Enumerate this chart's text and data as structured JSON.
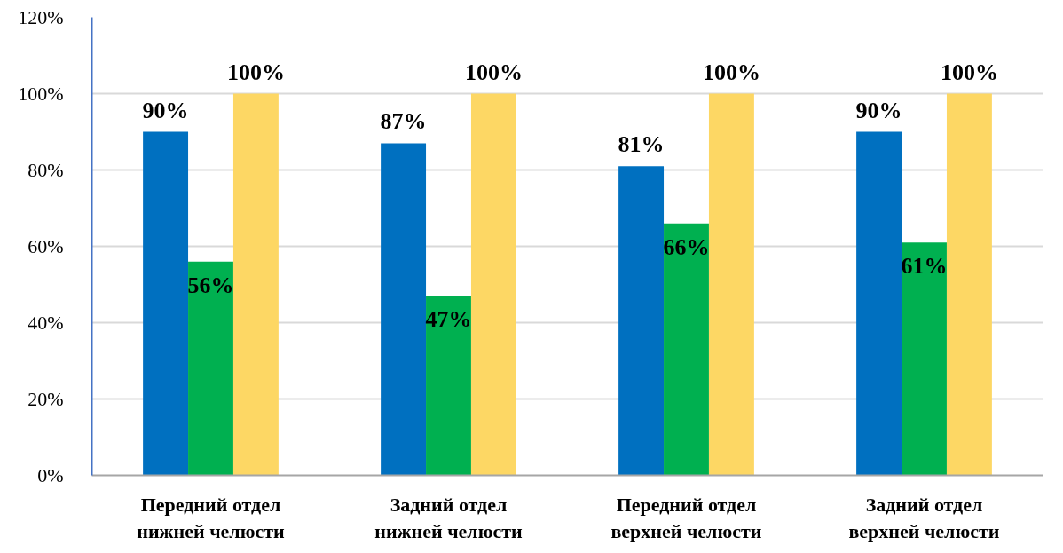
{
  "chart_data": {
    "type": "bar",
    "categories": [
      "Передний отдел\nнижней челюсти",
      "Задний отдел\nнижней челюсти",
      "Передний отдел\nверхней челюсти",
      "Задний отдел\nверхней челюсти"
    ],
    "series": [
      {
        "color": "#0070c0",
        "values": [
          90,
          87,
          81,
          90
        ],
        "value_labels": [
          "90%",
          "87%",
          "81%",
          "90%"
        ]
      },
      {
        "color": "#00b050",
        "values": [
          56,
          47,
          66,
          61
        ],
        "value_labels": [
          "56%",
          "47%",
          "66%",
          "61%"
        ]
      },
      {
        "color": "#fdd764",
        "values": [
          100,
          100,
          100,
          100
        ],
        "value_labels": [
          "100%",
          "100%",
          "100%",
          "100%"
        ]
      }
    ],
    "ylim": [
      0,
      120
    ],
    "yticks": [
      {
        "value": 0,
        "label": "0%"
      },
      {
        "value": 20,
        "label": "20%"
      },
      {
        "value": 40,
        "label": "40%"
      },
      {
        "value": 60,
        "label": "60%"
      },
      {
        "value": 80,
        "label": "80%"
      },
      {
        "value": 100,
        "label": "100%"
      },
      {
        "value": 120,
        "label": "120%"
      }
    ],
    "grid": "y"
  }
}
